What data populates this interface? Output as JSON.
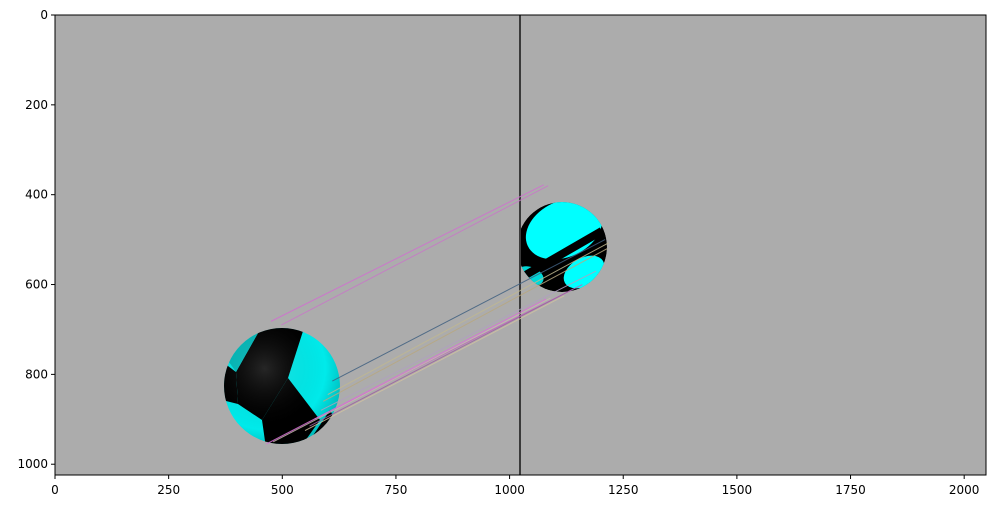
{
  "figure": {
    "background": "#ffffff",
    "image_background": "#acacac",
    "divider_color": "#3a3a3a",
    "sphere_colors": {
      "light": "#00ffff",
      "dark": "#000000"
    }
  },
  "axes": {
    "x_ticks": [
      "0",
      "250",
      "500",
      "750",
      "1000",
      "1250",
      "1500",
      "1750",
      "2000"
    ],
    "x_values": [
      0,
      250,
      500,
      750,
      1000,
      1250,
      1500,
      1750,
      2000
    ],
    "y_ticks": [
      "0",
      "200",
      "400",
      "600",
      "800",
      "1000"
    ],
    "y_values": [
      0,
      200,
      400,
      600,
      800,
      1000
    ],
    "x_range": [
      0,
      2048
    ],
    "y_range": [
      1024,
      0
    ],
    "divider_x": 1024
  },
  "spheres": [
    {
      "name": "left-sphere",
      "center": [
        500,
        815
      ],
      "radius": 130
    },
    {
      "name": "right-sphere",
      "center": [
        1115,
        510
      ],
      "radius": 100
    }
  ],
  "matches": [
    {
      "from": [
        475,
        682
      ],
      "to": [
        1075,
        378
      ],
      "color": "#d070d0"
    },
    {
      "from": [
        498,
        690
      ],
      "to": [
        1085,
        380
      ],
      "color": "#c878c8"
    },
    {
      "from": [
        610,
        815
      ],
      "to": [
        1210,
        500
      ],
      "color": "#406080"
    },
    {
      "from": [
        600,
        845
      ],
      "to": [
        1218,
        507
      ],
      "color": "#c0b890"
    },
    {
      "from": [
        590,
        860
      ],
      "to": [
        1215,
        520
      ],
      "color": "#b8a880"
    },
    {
      "from": [
        585,
        880
      ],
      "to": [
        1190,
        570
      ],
      "color": "#b0a0c0"
    },
    {
      "from": [
        570,
        900
      ],
      "to": [
        1160,
        600
      ],
      "color": "#c060c0"
    },
    {
      "from": [
        560,
        915
      ],
      "to": [
        1140,
        610
      ],
      "color": "#a060a0"
    },
    {
      "from": [
        550,
        925
      ],
      "to": [
        1120,
        625
      ],
      "color": "#d0c0a0"
    },
    {
      "from": [
        465,
        955
      ],
      "to": [
        1080,
        632
      ],
      "color": "#d870d8"
    },
    {
      "from": [
        480,
        950
      ],
      "to": [
        1090,
        630
      ],
      "color": "#c8b8b0"
    }
  ]
}
